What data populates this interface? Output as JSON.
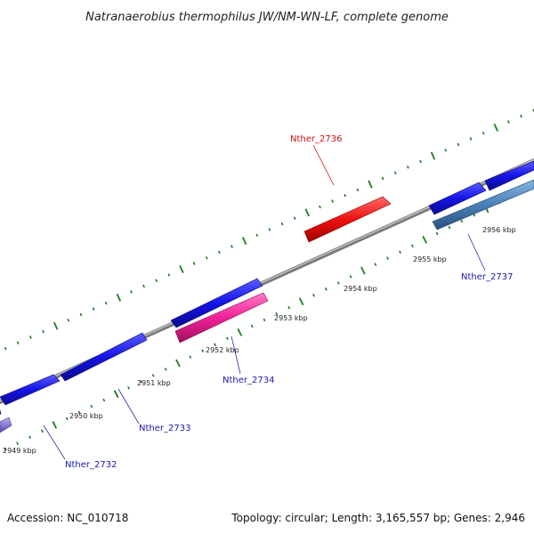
{
  "title": "Natranaerobius thermophilus JW/NM-WN-LF, complete genome",
  "footer": {
    "accession": "Accession: NC_010718",
    "summary": "Topology: circular; Length: 3,165,557 bp; Genes: 2,946"
  },
  "colors": {
    "backbone": "#8a8a8a",
    "tick": "#1e7a1e",
    "gene_forward": "#1818e0",
    "gene_highlight_red": "#ee1111",
    "gene_highlight_pink": "#ee2299",
    "gene_steel": "#4a80b8",
    "gene_lavender": "#8a7ad8",
    "label_blue": "#1a1aa8",
    "label_red": "#cc1111"
  },
  "scale": {
    "unit": "kbp",
    "ticks": [
      {
        "label": "2949 kbp"
      },
      {
        "label": "2950 kbp"
      },
      {
        "label": "2951 kbp"
      },
      {
        "label": "2952 kbp"
      },
      {
        "label": "2953 kbp"
      },
      {
        "label": "2954 kbp"
      },
      {
        "label": "2955 kbp"
      },
      {
        "label": "2956 kbp"
      }
    ]
  },
  "genes": [
    {
      "name": "Nther_2732",
      "labeled": true
    },
    {
      "name": "Nther_2733",
      "labeled": true
    },
    {
      "name": "Nther_2734",
      "labeled": true
    },
    {
      "name": "Nther_2736",
      "labeled": true
    },
    {
      "name": "Nther_2737",
      "labeled": true
    }
  ]
}
